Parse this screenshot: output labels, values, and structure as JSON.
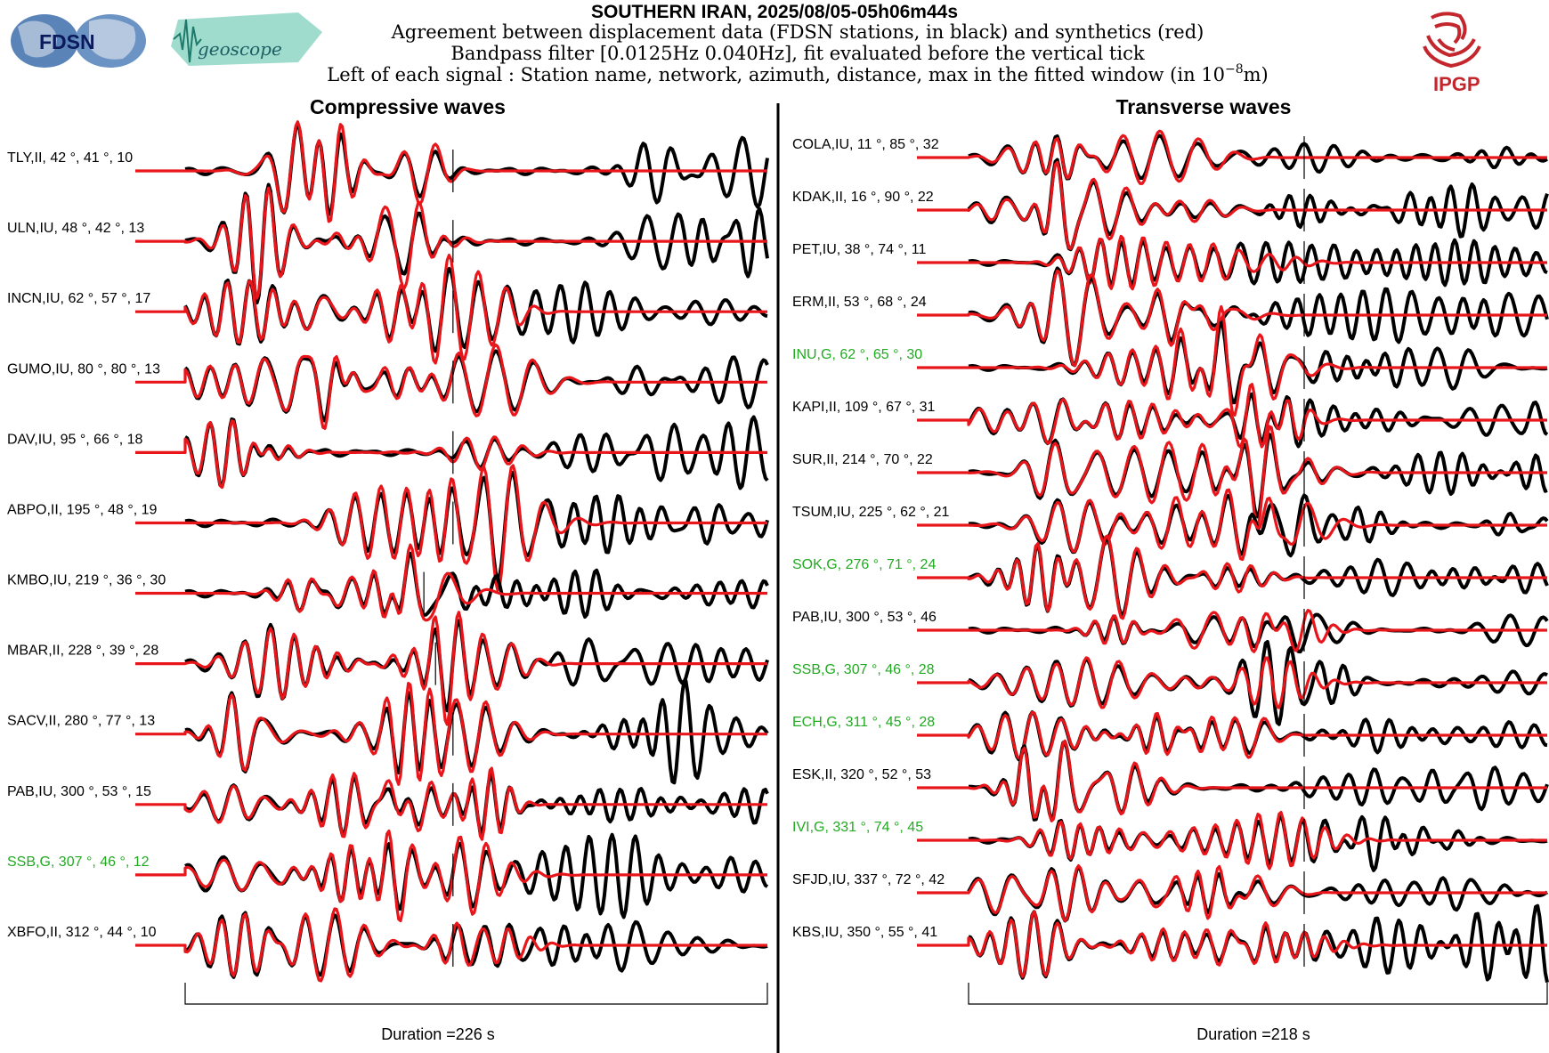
{
  "header": {
    "title": "SOUTHERN IRAN, 2025/08/05-05h06m44s",
    "line1": "Agreement between displacement data (FDSN stations, in black) and synthetics (red)",
    "line2": "Bandpass filter [0.0125Hz 0.040Hz], fit evaluated before the vertical tick",
    "line3_prefix": "Left of each signal : Station name, network, azimuth, distance, max in the fitted window (in 10",
    "line3_exp": "−8",
    "line3_suffix": "m)"
  },
  "logos": {
    "fdsn": "FDSN",
    "geoscope": "geoscope",
    "ipgp": "IPGP"
  },
  "colors": {
    "data": "#000000",
    "synthetic": "#e8161b",
    "highlight_label": "#22aa22",
    "ipgp_red": "#c4262e"
  },
  "chart_data": [
    {
      "type": "line",
      "title": "Compressive waves",
      "duration_label": "Duration =226 s",
      "series_legend": {
        "data": "black",
        "synthetics": "red"
      },
      "traces": [
        {
          "station": "TLY,II, 42",
          "az": "°, 41",
          "dist": "°, 10",
          "highlight": false,
          "tick_frac": 0.46
        },
        {
          "station": "ULN,IU, 48",
          "az": "°, 42",
          "dist": "°, 13",
          "highlight": false,
          "tick_frac": 0.46
        },
        {
          "station": "INCN,IU, 62",
          "az": "°, 57",
          "dist": "°, 17",
          "highlight": false,
          "tick_frac": 0.46
        },
        {
          "station": "GUMO,IU, 80",
          "az": "°, 80",
          "dist": "°, 13",
          "highlight": false,
          "tick_frac": 0.46
        },
        {
          "station": "DAV,IU, 95",
          "az": "°, 66",
          "dist": "°, 18",
          "highlight": false,
          "tick_frac": 0.46
        },
        {
          "station": "ABPO,II, 195",
          "az": "°, 48",
          "dist": "°, 19",
          "highlight": false,
          "tick_frac": 0.46
        },
        {
          "station": "KMBO,IU, 219",
          "az": "°, 36",
          "dist": "°, 30",
          "highlight": false,
          "tick_frac": 0.41
        },
        {
          "station": "MBAR,II, 228",
          "az": "°, 39",
          "dist": "°, 28",
          "highlight": false,
          "tick_frac": 0.43
        },
        {
          "station": "SACV,II, 280",
          "az": "°, 77",
          "dist": "°, 13",
          "highlight": false,
          "tick_frac": 0.46
        },
        {
          "station": "PAB,IU, 300",
          "az": "°, 53",
          "dist": "°, 15",
          "highlight": false,
          "tick_frac": 0.46
        },
        {
          "station": "SSB,G, 307",
          "az": "°, 46",
          "dist": "°, 12",
          "highlight": true,
          "tick_frac": 0.46
        },
        {
          "station": "XBFO,II, 312",
          "az": "°, 44",
          "dist": "°, 10",
          "highlight": false,
          "tick_frac": 0.46
        }
      ]
    },
    {
      "type": "line",
      "title": "Transverse waves",
      "duration_label": "Duration =218 s",
      "series_legend": {
        "data": "black",
        "synthetics": "red"
      },
      "traces": [
        {
          "station": "COLA,IU, 11",
          "az": "°, 85",
          "dist": "°, 32",
          "highlight": false,
          "tick_frac": 0.58
        },
        {
          "station": "KDAK,II, 16",
          "az": "°, 90",
          "dist": "°, 22",
          "highlight": false,
          "tick_frac": 0.58
        },
        {
          "station": "PET,IU, 38",
          "az": "°, 74",
          "dist": "°, 11",
          "highlight": false,
          "tick_frac": 0.58
        },
        {
          "station": "ERM,II, 53",
          "az": "°, 68",
          "dist": "°, 24",
          "highlight": false,
          "tick_frac": 0.58
        },
        {
          "station": "INU,G, 62",
          "az": "°, 65",
          "dist": "°, 30",
          "highlight": true,
          "tick_frac": 0.58
        },
        {
          "station": "KAPI,II, 109",
          "az": "°, 67",
          "dist": "°, 31",
          "highlight": false,
          "tick_frac": 0.58
        },
        {
          "station": "SUR,II, 214",
          "az": "°, 70",
          "dist": "°, 22",
          "highlight": false,
          "tick_frac": 0.58
        },
        {
          "station": "TSUM,IU, 225",
          "az": "°, 62",
          "dist": "°, 21",
          "highlight": false,
          "tick_frac": 0.58
        },
        {
          "station": "SOK,G, 276",
          "az": "°, 71",
          "dist": "°, 24",
          "highlight": true,
          "tick_frac": 0.58
        },
        {
          "station": "PAB,IU, 300",
          "az": "°, 53",
          "dist": "°, 46",
          "highlight": false,
          "tick_frac": 0.58
        },
        {
          "station": "SSB,G, 307",
          "az": "°, 46",
          "dist": "°, 28",
          "highlight": true,
          "tick_frac": 0.58
        },
        {
          "station": "ECH,G, 311",
          "az": "°, 45",
          "dist": "°, 28",
          "highlight": true,
          "tick_frac": 0.58
        },
        {
          "station": "ESK,II, 320",
          "az": "°, 52",
          "dist": "°, 53",
          "highlight": false,
          "tick_frac": 0.58
        },
        {
          "station": "IVI,G, 331",
          "az": "°, 74",
          "dist": "°, 45",
          "highlight": true,
          "tick_frac": 0.58
        },
        {
          "station": "SFJD,IU, 337",
          "az": "°, 72",
          "dist": "°, 42",
          "highlight": false,
          "tick_frac": 0.58
        },
        {
          "station": "KBS,IU, 350",
          "az": "°, 55",
          "dist": "°, 41",
          "highlight": false,
          "tick_frac": 0.58
        }
      ]
    }
  ]
}
